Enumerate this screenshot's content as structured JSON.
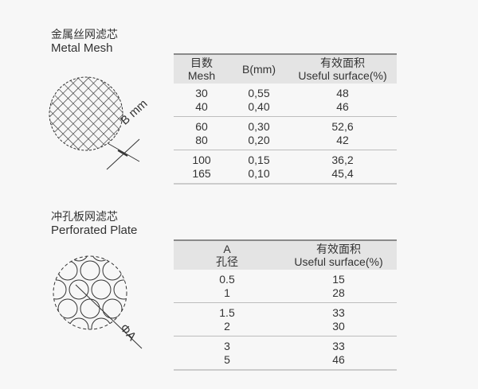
{
  "metal_mesh": {
    "title_cn": "金属丝网滤芯",
    "title_en": "Metal Mesh",
    "diagram_label": "B mm",
    "headers": [
      [
        "目数",
        "Mesh"
      ],
      [
        "B(mm)"
      ],
      [
        "有效面积",
        "Useful surface(%)"
      ]
    ],
    "groups": [
      [
        [
          "30",
          "0,55",
          "48"
        ],
        [
          "40",
          "0,40",
          "46"
        ]
      ],
      [
        [
          "60",
          "0,30",
          "52,6"
        ],
        [
          "80",
          "0,20",
          "42"
        ]
      ],
      [
        [
          "100",
          "0,15",
          "36,2"
        ],
        [
          "165",
          "0,10",
          "45,4"
        ]
      ]
    ]
  },
  "perforated_plate": {
    "title_cn": "冲孔板网滤芯",
    "title_en": "Perforated Plate",
    "diagram_label": "ΦA",
    "headers": [
      [
        "A",
        "孔径"
      ],
      [
        "有效面积",
        "Useful surface(%)"
      ]
    ],
    "groups": [
      [
        [
          "0.5",
          "15"
        ],
        [
          "1",
          "28"
        ]
      ],
      [
        [
          "1.5",
          "33"
        ],
        [
          "2",
          "30"
        ]
      ],
      [
        [
          "3",
          "33"
        ],
        [
          "5",
          "46"
        ]
      ]
    ]
  }
}
